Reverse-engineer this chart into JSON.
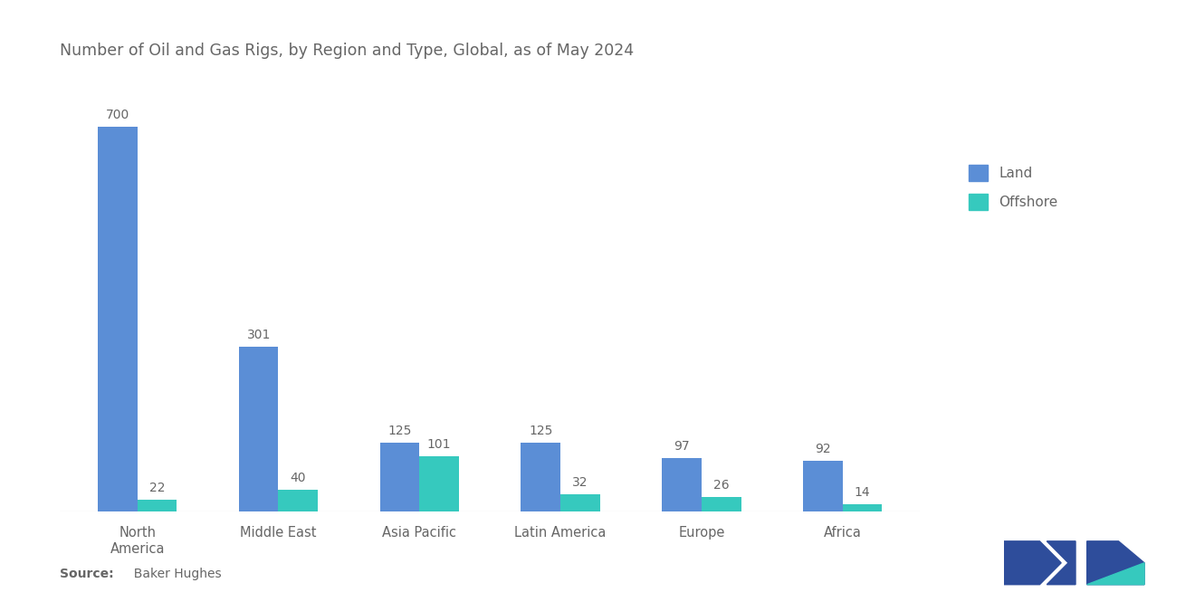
{
  "title": "Number of Oil and Gas Rigs, by Region and Type, Global, as of May 2024",
  "categories": [
    "North\nAmerica",
    "Middle East",
    "Asia Pacific",
    "Latin America",
    "Europe",
    "Africa"
  ],
  "land_values": [
    700,
    301,
    125,
    125,
    97,
    92
  ],
  "offshore_values": [
    22,
    40,
    101,
    32,
    26,
    14
  ],
  "land_color": "#5B8ED6",
  "offshore_color": "#36C9BE",
  "background_color": "#ffffff",
  "title_fontsize": 12.5,
  "label_fontsize": 10,
  "tick_fontsize": 10.5,
  "source_bold": "Source:",
  "source_rest": "  Baker Hughes",
  "legend_labels": [
    "Land",
    "Offshore"
  ],
  "bar_width": 0.28,
  "ylim": [
    0,
    800
  ],
  "text_color": "#666666",
  "logo_blue": "#2E4D9B",
  "logo_teal": "#36C9BE"
}
